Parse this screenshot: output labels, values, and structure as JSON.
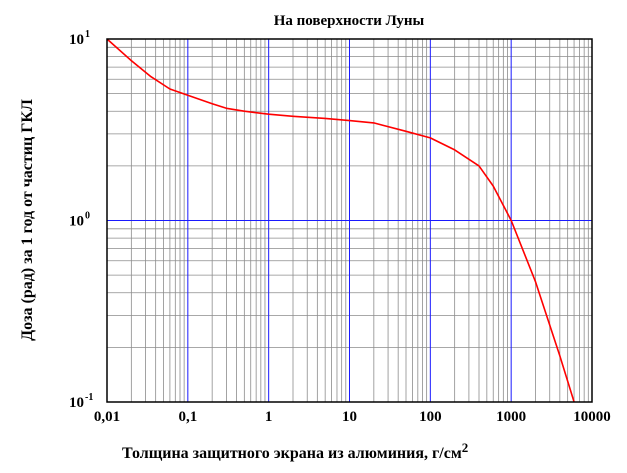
{
  "chart_data": {
    "type": "line",
    "title": "На поверхности Луны",
    "xlabel": "Толщина защитного экрана из алюминия,  г/см",
    "xlabel_sup": "2",
    "ylabel": "Доза (рад) за 1 год от частиц ГКЛ",
    "x_scale": "log",
    "y_scale": "log",
    "xlim": [
      0.01,
      10000
    ],
    "ylim": [
      0.1,
      10
    ],
    "x_ticks": [
      {
        "value": 0.01,
        "label": "0,01"
      },
      {
        "value": 0.1,
        "label": "0,1"
      },
      {
        "value": 1,
        "label": "1"
      },
      {
        "value": 10,
        "label": "10"
      },
      {
        "value": 100,
        "label": "100"
      },
      {
        "value": 1000,
        "label": "1000"
      },
      {
        "value": 10000,
        "label": "10000"
      }
    ],
    "y_ticks": [
      {
        "value": 10,
        "base": "10",
        "exp": "1"
      },
      {
        "value": 1,
        "base": "10",
        "exp": "0"
      },
      {
        "value": 0.1,
        "base": "10",
        "exp": "-1"
      }
    ],
    "grid": true,
    "colors": {
      "line": "#ff0000",
      "major_grid": "#1a1aff",
      "minor_grid": "#8c8c8c",
      "frame": "#000000"
    },
    "series": [
      {
        "x": [
          0.01,
          0.02,
          0.035,
          0.06,
          0.1,
          0.2,
          0.3,
          0.5,
          1,
          2,
          5,
          10,
          20,
          50,
          100,
          200,
          400,
          600,
          1000,
          2000,
          4000,
          6000
        ],
        "y": [
          10,
          7.6,
          6.2,
          5.3,
          4.9,
          4.4,
          4.15,
          4.0,
          3.85,
          3.75,
          3.65,
          3.55,
          3.45,
          3.1,
          2.85,
          2.45,
          2.0,
          1.55,
          1.0,
          0.46,
          0.18,
          0.1
        ]
      }
    ]
  }
}
